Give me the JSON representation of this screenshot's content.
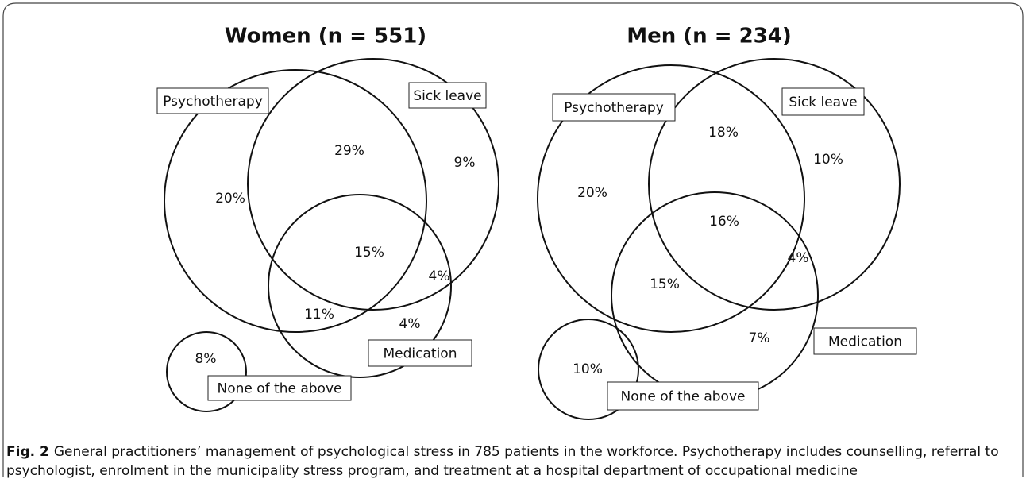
{
  "panels": [
    {
      "title": "Women (n = 551)",
      "sets": [
        "Psychotherapy",
        "Sick leave",
        "Medication",
        "None of the above"
      ],
      "regions": [
        "20%",
        "29%",
        "9%",
        "15%",
        "4%",
        "11%",
        "4%",
        "8%"
      ]
    },
    {
      "title": "Men (n = 234)",
      "sets": [
        "Psychotherapy",
        "Sick leave",
        "Medication",
        "None of the above"
      ],
      "regions": [
        "18%",
        "10%",
        "20%",
        "16%",
        "4%",
        "15%",
        "7%",
        "10%"
      ]
    }
  ],
  "caption": {
    "label": "Fig. 2",
    "lines": [
      "General practitioners’ management of psychological stress in 785 patients in the workforce. Psychotherapy includes counselling, referral to",
      "psychologist, enrolment in the municipality stress program, and treatment at a hospital department of occupational medicine"
    ]
  }
}
